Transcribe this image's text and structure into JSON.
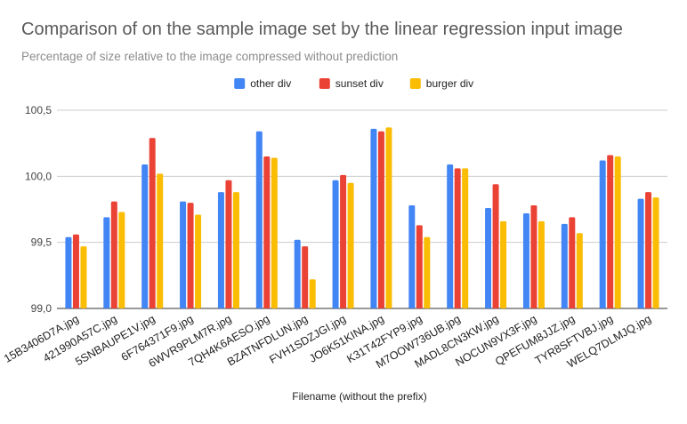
{
  "chart_data": {
    "type": "bar",
    "title": "Comparison of on the sample image set by the linear regression input image",
    "subtitle": "Percentage of size relative to the image compressed without prediction",
    "xlabel": "Filename (without the prefix)",
    "ylabel": "",
    "ylim": [
      99.0,
      100.5
    ],
    "yticks": [
      "99,0",
      "99,5",
      "100,0",
      "100,5"
    ],
    "grid": true,
    "legend_position": "top",
    "categories": [
      "15B3406D7A.jpg",
      "421990A57C.jpg",
      "5SNBAUPE1V.jpg",
      "6F764371F9.jpg",
      "6WVR9PLM7R.jpg",
      "7QH4K6AESO.jpg",
      "BZATNFDLUN.jpg",
      "FVH1SDZJGI.jpg",
      "JO6K51KINA.jpg",
      "K31T42FYP9.jpg",
      "M7OOW736UB.jpg",
      "MADL8CN3KW.jpg",
      "NOCUN9VX3F.jpg",
      "QPEFUM8JJZ.jpg",
      "TYR8SFTVBJ.jpg",
      "WELQ7DLMJQ.jpg"
    ],
    "series": [
      {
        "name": "other div",
        "color": "#4285f4",
        "values": [
          99.54,
          99.69,
          100.09,
          99.81,
          99.88,
          100.34,
          99.52,
          99.97,
          100.36,
          99.78,
          100.09,
          99.76,
          99.72,
          99.64,
          100.12,
          99.83
        ]
      },
      {
        "name": "sunset div",
        "color": "#ea4335",
        "values": [
          99.56,
          99.81,
          100.29,
          99.8,
          99.97,
          100.15,
          99.47,
          100.01,
          100.34,
          99.63,
          100.06,
          99.94,
          99.78,
          99.69,
          100.16,
          99.88
        ]
      },
      {
        "name": "burger div",
        "color": "#fbbc04",
        "values": [
          99.47,
          99.73,
          100.02,
          99.71,
          99.88,
          100.14,
          99.22,
          99.95,
          100.37,
          99.54,
          100.06,
          99.66,
          99.66,
          99.57,
          100.15,
          99.84
        ]
      }
    ]
  }
}
